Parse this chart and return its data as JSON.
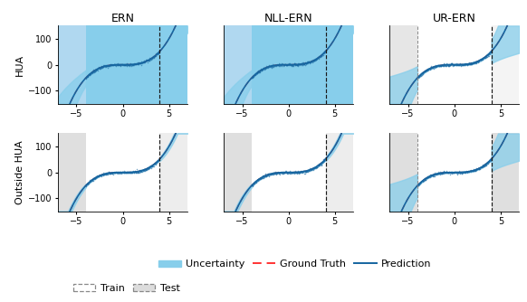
{
  "col_titles": [
    "ERN",
    "NLL-ERN",
    "UR-ERN"
  ],
  "row_labels": [
    "HUA",
    "Outside HUA"
  ],
  "xlim": [
    -7.0,
    7.0
  ],
  "ylim": [
    -150,
    150
  ],
  "xticks": [
    -5,
    0,
    5
  ],
  "yticks": [
    -100,
    0,
    100
  ],
  "train_x_min": -4.0,
  "train_x_max": 4.0,
  "cubic_scale": 1.25,
  "light_blue_bg": "#87CEEB",
  "lighter_blue_bg": "#B0D8F0",
  "light_gray_bg": "#DCDCDC",
  "white_bg": "#FFFFFF",
  "uncertainty_fill": "#87CEEB",
  "pred_line_color": "#1565A0",
  "scatter_color": "#1565A0",
  "gt_color": "#FF3333",
  "vline_color": "#1A1A1A",
  "vline_gray": "#888888",
  "noise_scatter": 2.5,
  "n_scatter": 300,
  "legend_fontsize": 8,
  "title_fontsize": 9,
  "tick_fontsize": 7,
  "ylabel_fontsize": 8
}
